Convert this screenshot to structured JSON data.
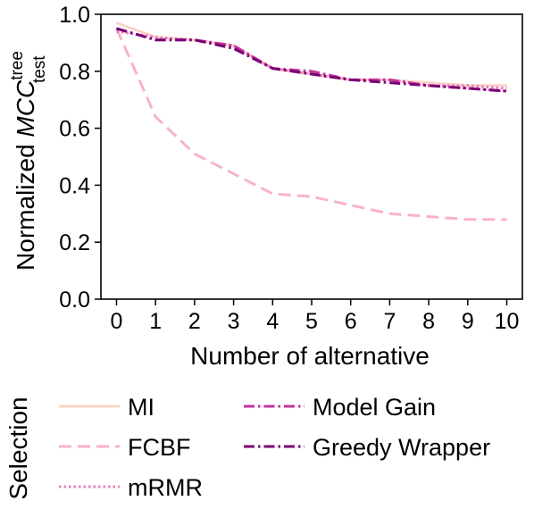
{
  "chart_data": {
    "type": "line",
    "xlabel": "Number of alternative",
    "ylabel": {
      "base": "Normalized ",
      "italic": "MCC",
      "superscript": "tree",
      "subscript": "test"
    },
    "x": [
      0,
      1,
      2,
      3,
      4,
      5,
      6,
      7,
      8,
      9,
      10
    ],
    "xlim": [
      -0.4,
      10.4
    ],
    "ylim": [
      0.0,
      1.0
    ],
    "xticks": [
      "0",
      "1",
      "2",
      "3",
      "4",
      "5",
      "6",
      "7",
      "8",
      "9",
      "10"
    ],
    "yticks": [
      "0.0",
      "0.2",
      "0.4",
      "0.6",
      "0.8",
      "1.0"
    ],
    "grid": false,
    "legend": {
      "title": "Selection",
      "placement": "below"
    },
    "series": [
      {
        "name": "MI",
        "color": "#fbd3c8",
        "dash": "solid",
        "values": [
          0.97,
          0.92,
          0.91,
          0.89,
          0.81,
          0.79,
          0.77,
          0.77,
          0.76,
          0.75,
          0.75
        ]
      },
      {
        "name": "FCBF",
        "color": "#f8b4c4",
        "dash": "dashed",
        "values": [
          0.95,
          0.64,
          0.51,
          0.44,
          0.37,
          0.36,
          0.33,
          0.3,
          0.29,
          0.28,
          0.28
        ]
      },
      {
        "name": "mRMR",
        "color": "#e77fb7",
        "dash": "dotted",
        "values": [
          0.94,
          0.92,
          0.91,
          0.89,
          0.81,
          0.79,
          0.77,
          0.77,
          0.75,
          0.75,
          0.74
        ]
      },
      {
        "name": "Model Gain",
        "color": "#c5329b",
        "dash": "dashdot",
        "values": [
          0.95,
          0.91,
          0.91,
          0.89,
          0.81,
          0.8,
          0.77,
          0.77,
          0.75,
          0.74,
          0.73
        ]
      },
      {
        "name": "Greedy Wrapper",
        "color": "#7a0177",
        "dash": "dashdot",
        "values": [
          0.95,
          0.91,
          0.91,
          0.88,
          0.81,
          0.79,
          0.77,
          0.76,
          0.75,
          0.74,
          0.73
        ]
      }
    ]
  }
}
